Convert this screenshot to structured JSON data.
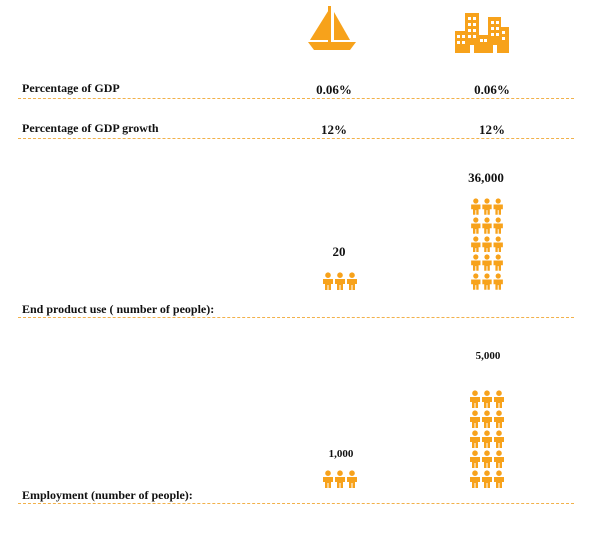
{
  "chart_data": {
    "type": "table",
    "columns": [
      {
        "name": "sailboat",
        "icon": "sailboat-icon"
      },
      {
        "name": "city",
        "icon": "city-buildings-icon"
      }
    ],
    "rows": [
      {
        "label": "Percentage of GDP",
        "values": [
          "0.06%",
          "0.06%"
        ]
      },
      {
        "label": "Percentage of GDP growth",
        "values": [
          "12%",
          "12%"
        ]
      },
      {
        "label": "End product use ( number of people):",
        "values": [
          20,
          36000
        ],
        "display": [
          "20",
          "36,000"
        ],
        "icon_rows": [
          1,
          5
        ]
      },
      {
        "label": "Employment (number of people):",
        "values": [
          1000,
          5000
        ],
        "display": [
          "1,000",
          "5,000"
        ],
        "icon_rows": [
          1,
          5
        ]
      }
    ]
  },
  "colors": {
    "accent": "#F7A21B",
    "divider": "#F2B14A",
    "text": "#111111"
  }
}
